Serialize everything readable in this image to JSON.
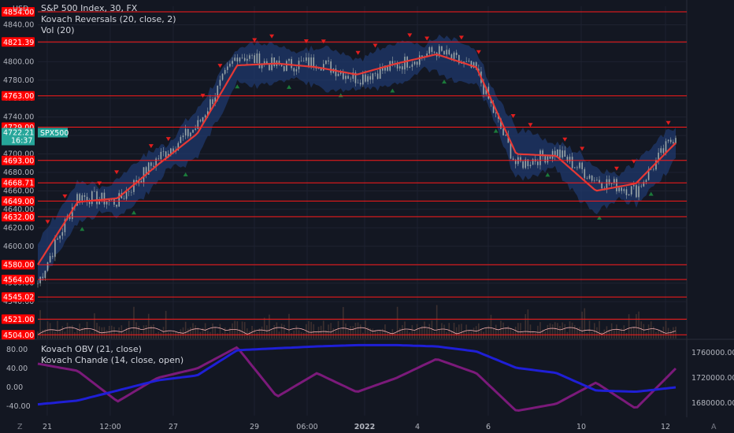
{
  "header": {
    "currency": "USD",
    "title": "S&P 500 Index, 30, FX",
    "indicator_1": "Kovach Reversals (20, close, 2)",
    "indicator_2": "Vol (20)",
    "indicator_3": "Kovach OBV (21, close)",
    "indicator_4": "Kovach Chande (14, close, open)"
  },
  "price_badge": {
    "price": "4722.21",
    "countdown": "16:37",
    "symbol": "SPX500"
  },
  "colors": {
    "background": "#131722",
    "level_line": "#ff1a1a",
    "level_label_bg": "#ff0000",
    "price_badge": "#26a69a",
    "kovach_mid": "#e53935",
    "band_fill": "#1f3a70",
    "candle": "#9aa6a8",
    "up_marker": "#1b7a3a",
    "down_marker": "#e01e1e",
    "obv": "#1f1fd6",
    "chande": "#7b1a7a",
    "vol_line": "#f4b0b0",
    "vol_bars": "#3c3030"
  },
  "chart_data": [
    {
      "type": "line",
      "title": "S&P 500 Index, 30, FX",
      "series": [
        {
          "name": "S&P 500 Index",
          "x": [
            "21",
            "",
            "12:00",
            "",
            "27",
            "",
            "29",
            "06:00",
            "",
            "2022",
            "4",
            "",
            "6",
            "",
            "10",
            "",
            "12"
          ],
          "values": [
            4560,
            4655,
            4648,
            4695,
            4730,
            4808,
            4795,
            4800,
            4782,
            4796,
            4812,
            4790,
            4688,
            4702,
            4672,
            4660,
            4722
          ]
        },
        {
          "name": "Kovach Reversals (20, close, 2)",
          "x": [
            "21",
            "",
            "12:00",
            "",
            "27",
            "",
            "29",
            "06:00",
            "",
            "2022",
            "4",
            "",
            "6",
            "",
            "10",
            "",
            "12"
          ],
          "values": [
            4580,
            4648,
            4652,
            4688,
            4722,
            4796,
            4798,
            4794,
            4786,
            4798,
            4808,
            4794,
            4700,
            4698,
            4660,
            4668,
            4712
          ]
        }
      ],
      "x_tick_labels": [
        "21",
        "12:00",
        "27",
        "29",
        "06:00",
        "2022",
        "4",
        "6",
        "10",
        "12"
      ],
      "y_tick_labels": [
        "4840.00",
        "4820.00",
        "4800.00",
        "4780.00",
        "4760.00",
        "4740.00",
        "4720.00",
        "4700.00",
        "4680.00",
        "4660.00",
        "4640.00",
        "4620.00",
        "4600.00",
        "4580.00",
        "4560.00",
        "4540.00",
        "4520.00"
      ],
      "horizontal_levels": [
        "4854.00",
        "4821.39",
        "4763.00",
        "4729.00",
        "4693.00",
        "4668.71",
        "4649.00",
        "4632.00",
        "4580.00",
        "4564.00",
        "4545.02",
        "4521.00",
        "4504.00"
      ],
      "ylim": [
        4500,
        4860
      ]
    },
    {
      "type": "line",
      "title": "Kovach OBV (21, close) / Kovach Chande (14, close, open)",
      "series": [
        {
          "name": "Kovach OBV (21, close)",
          "values": [
            1678000,
            1684000,
            1700000,
            1716000,
            1724000,
            1764000,
            1767000,
            1770000,
            1772000,
            1772000,
            1770000,
            1762000,
            1736000,
            1728000,
            1700000,
            1698000,
            1705000
          ]
        },
        {
          "name": "Kovach Chande (14, close, open)",
          "values": [
            50,
            35,
            -30,
            20,
            40,
            85,
            -20,
            30,
            -10,
            20,
            60,
            30,
            -50,
            -35,
            10,
            -45,
            40
          ]
        }
      ],
      "y_tick_labels_left": [
        "80.00",
        "40.00",
        "0.00",
        "-40.00"
      ],
      "y_tick_labels_right": [
        "1760000.00",
        "1720000.00",
        "1680000.00"
      ]
    }
  ]
}
